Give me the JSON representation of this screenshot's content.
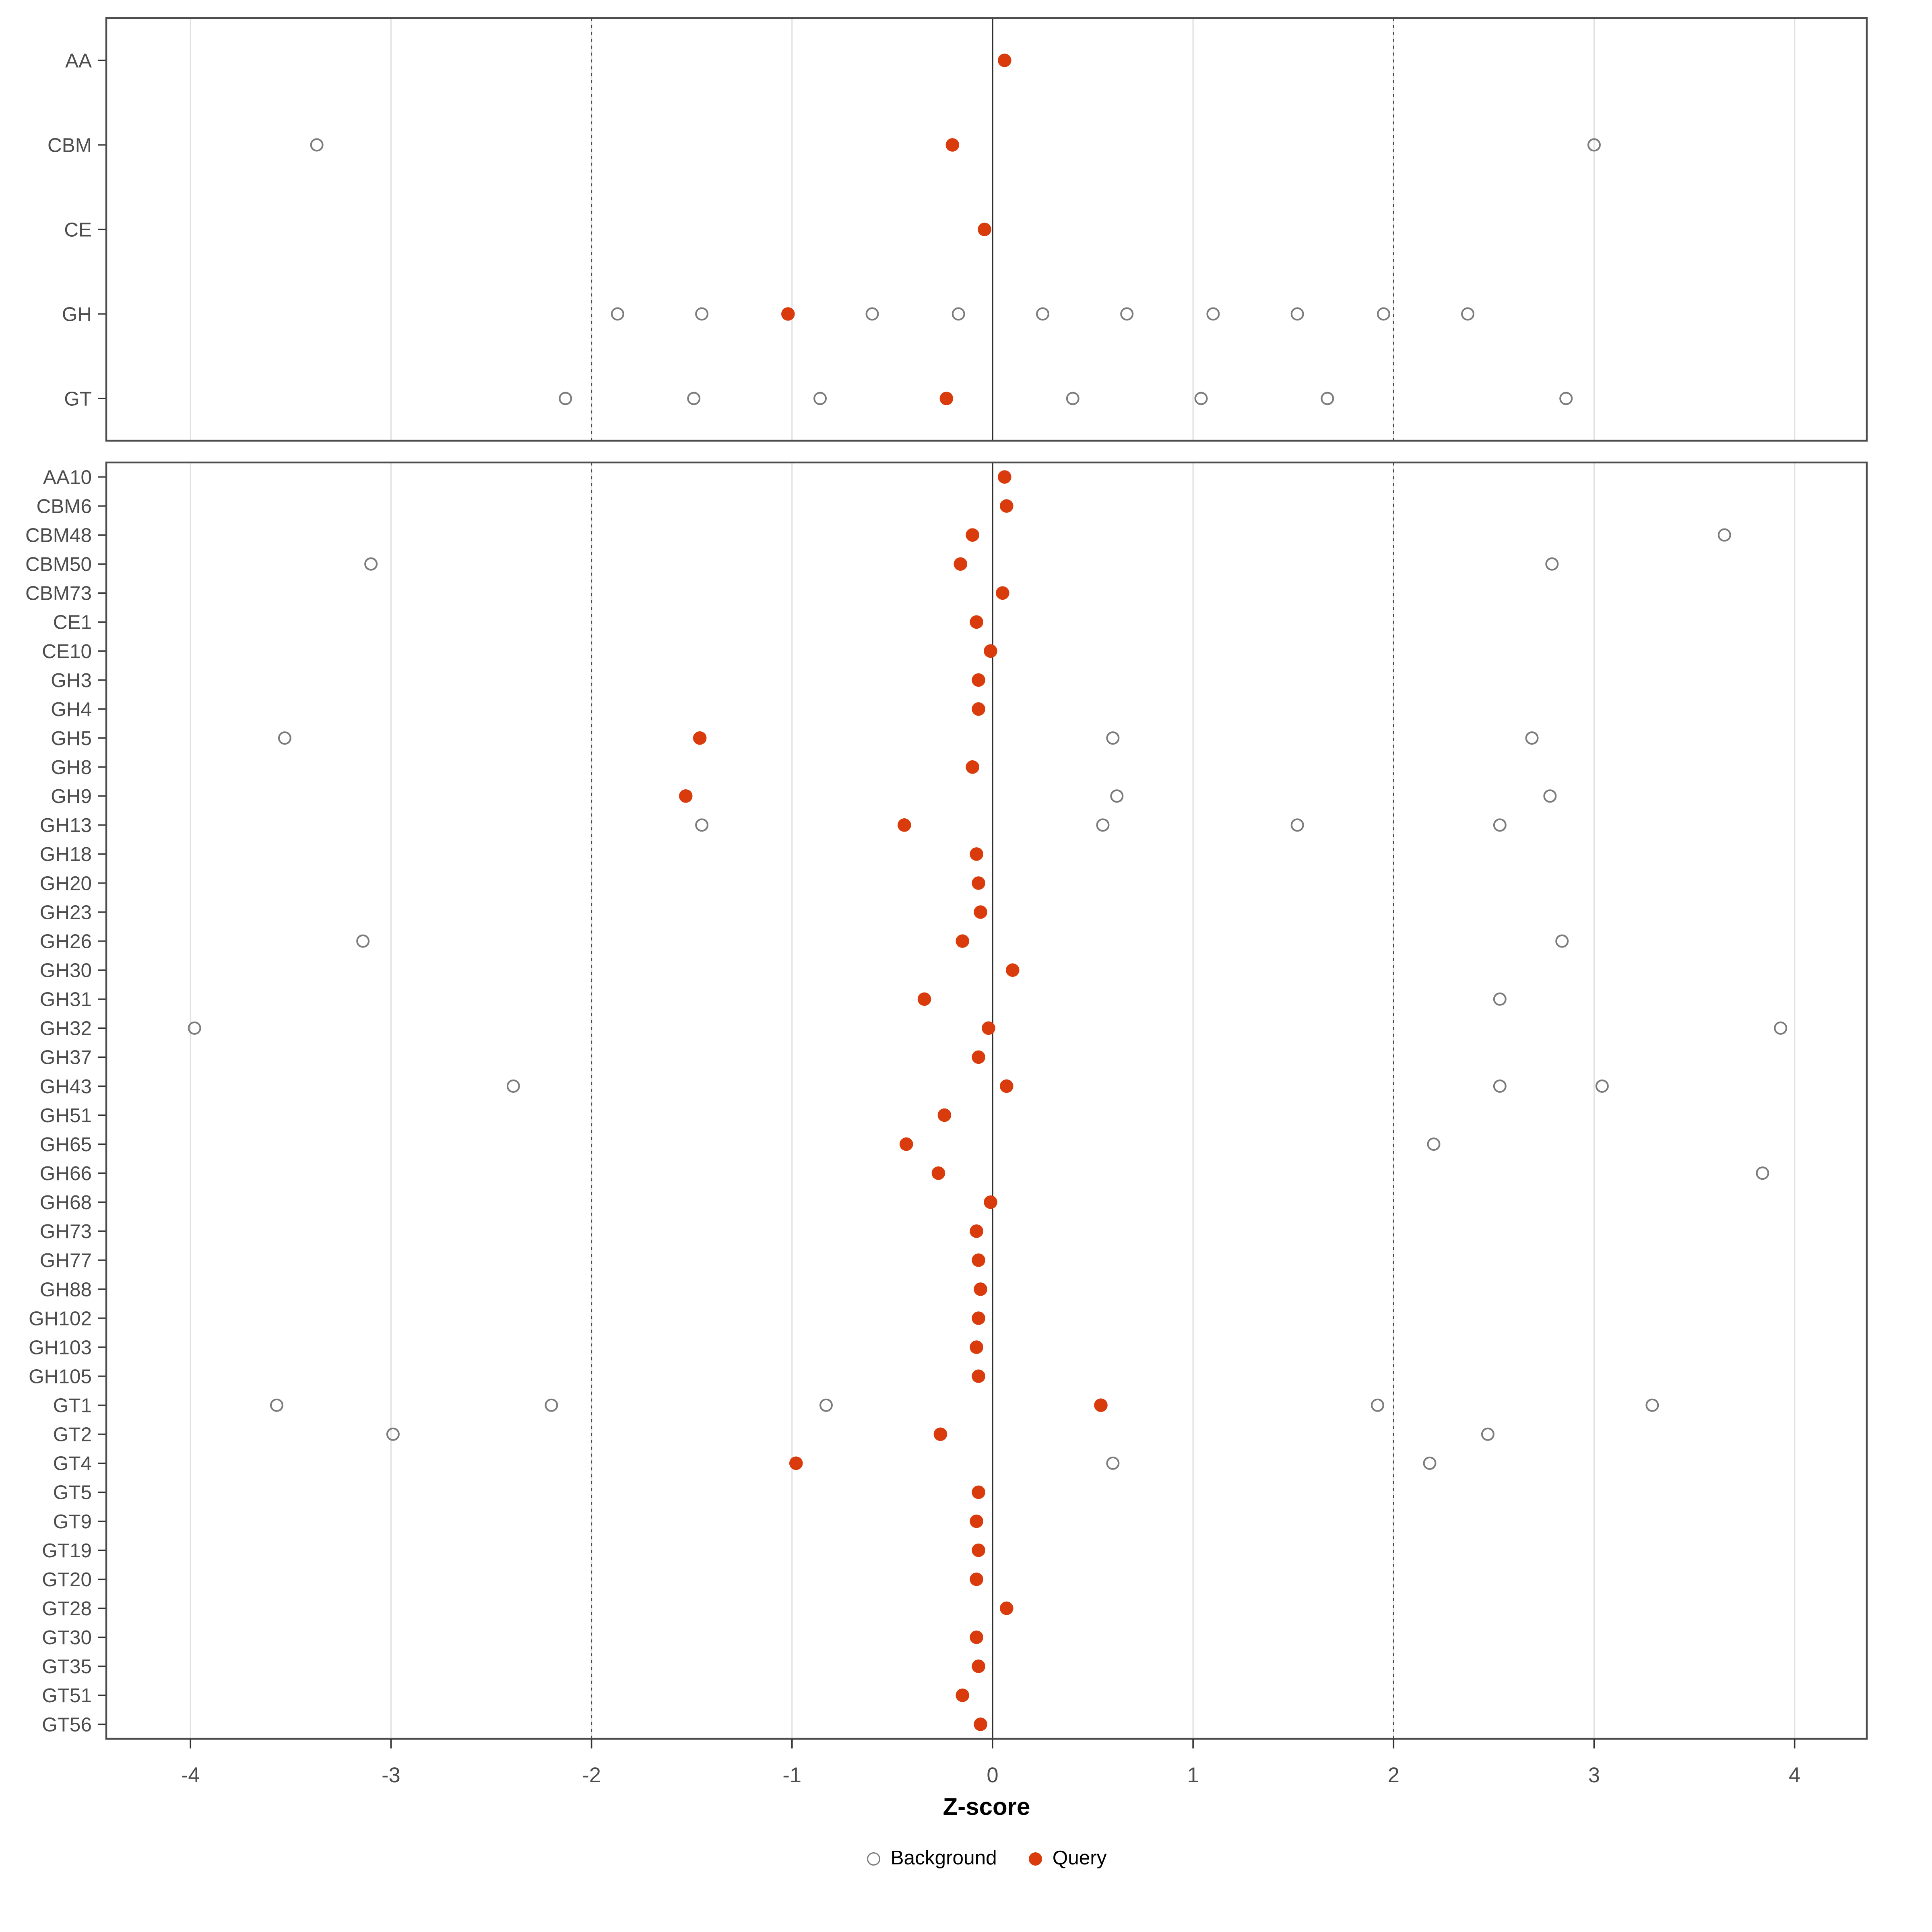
{
  "colors": {
    "query_point": "#d93b0c",
    "background_point": "#7c7c7c",
    "grid": "#e2e2e2",
    "dashed_line": "#4a4a4a",
    "zero_line": "#2e2e2e",
    "panel_border": "#4d4d4d",
    "axis_text": "#4d4d4d",
    "tick_mark": "#333333"
  },
  "chart_data": {
    "type": "scatter",
    "title": "",
    "xlabel": "Z-score",
    "ylabel": "",
    "xlim": [
      -4.42,
      4.36
    ],
    "x_ticks": [
      -4,
      -3,
      -2,
      -1,
      0,
      1,
      2,
      3,
      4
    ],
    "grid": "vertical-major",
    "legend_position": "bottom-center",
    "reference_lines": {
      "solid_zero": 0,
      "dashed": [
        -2,
        2
      ]
    },
    "legend": [
      {
        "label": "Background",
        "marker": "open-circle",
        "color": "#7c7c7c"
      },
      {
        "label": "Query",
        "marker": "filled-circle",
        "color": "#d93b0c"
      }
    ],
    "panels": [
      {
        "id": "class-panel",
        "rows": [
          {
            "label": "AA",
            "query": 0.06,
            "background": []
          },
          {
            "label": "CBM",
            "query": -0.2,
            "background": [
              -3.37,
              3.0
            ]
          },
          {
            "label": "CE",
            "query": -0.04,
            "background": []
          },
          {
            "label": "GH",
            "query": -1.02,
            "background": [
              -1.87,
              -1.45,
              -0.6,
              -0.17,
              0.25,
              0.67,
              1.1,
              1.52,
              1.95,
              2.37
            ]
          },
          {
            "label": "GT",
            "query": -0.23,
            "background": [
              -2.13,
              -1.49,
              -0.86,
              0.4,
              1.04,
              1.67,
              2.86
            ]
          }
        ]
      },
      {
        "id": "family-panel",
        "rows": [
          {
            "label": "AA10",
            "query": 0.06,
            "background": []
          },
          {
            "label": "CBM6",
            "query": 0.07,
            "background": []
          },
          {
            "label": "CBM48",
            "query": -0.1,
            "background": [
              3.65
            ]
          },
          {
            "label": "CBM50",
            "query": -0.16,
            "background": [
              -3.1,
              2.79
            ]
          },
          {
            "label": "CBM73",
            "query": 0.05,
            "background": []
          },
          {
            "label": "CE1",
            "query": -0.08,
            "background": []
          },
          {
            "label": "CE10",
            "query": -0.01,
            "background": []
          },
          {
            "label": "GH3",
            "query": -0.07,
            "background": []
          },
          {
            "label": "GH4",
            "query": -0.07,
            "background": []
          },
          {
            "label": "GH5",
            "query": -1.46,
            "background": [
              -3.53,
              0.6,
              2.69
            ]
          },
          {
            "label": "GH8",
            "query": -0.1,
            "background": []
          },
          {
            "label": "GH9",
            "query": -1.53,
            "background": [
              0.62,
              2.78
            ]
          },
          {
            "label": "GH13",
            "query": -0.44,
            "background": [
              -1.45,
              0.55,
              1.52,
              2.53
            ]
          },
          {
            "label": "GH18",
            "query": -0.08,
            "background": []
          },
          {
            "label": "GH20",
            "query": -0.07,
            "background": []
          },
          {
            "label": "GH23",
            "query": -0.06,
            "background": []
          },
          {
            "label": "GH26",
            "query": -0.15,
            "background": [
              -3.14,
              2.84
            ]
          },
          {
            "label": "GH30",
            "query": 0.1,
            "background": []
          },
          {
            "label": "GH31",
            "query": -0.34,
            "background": [
              2.53
            ]
          },
          {
            "label": "GH32",
            "query": -0.02,
            "background": [
              -3.98,
              3.93
            ]
          },
          {
            "label": "GH37",
            "query": -0.07,
            "background": []
          },
          {
            "label": "GH43",
            "query": 0.07,
            "background": [
              -2.39,
              2.53,
              3.04
            ]
          },
          {
            "label": "GH51",
            "query": -0.24,
            "background": []
          },
          {
            "label": "GH65",
            "query": -0.43,
            "background": [
              2.2
            ]
          },
          {
            "label": "GH66",
            "query": -0.27,
            "background": [
              3.84
            ]
          },
          {
            "label": "GH68",
            "query": -0.01,
            "background": []
          },
          {
            "label": "GH73",
            "query": -0.08,
            "background": []
          },
          {
            "label": "GH77",
            "query": -0.07,
            "background": []
          },
          {
            "label": "GH88",
            "query": -0.06,
            "background": []
          },
          {
            "label": "GH102",
            "query": -0.07,
            "background": []
          },
          {
            "label": "GH103",
            "query": -0.08,
            "background": []
          },
          {
            "label": "GH105",
            "query": -0.07,
            "background": []
          },
          {
            "label": "GT1",
            "query": 0.54,
            "background": [
              -3.57,
              -2.2,
              -0.83,
              1.92,
              3.29
            ]
          },
          {
            "label": "GT2",
            "query": -0.26,
            "background": [
              -2.99,
              2.47
            ]
          },
          {
            "label": "GT4",
            "query": -0.98,
            "background": [
              0.6,
              2.18
            ]
          },
          {
            "label": "GT5",
            "query": -0.07,
            "background": []
          },
          {
            "label": "GT9",
            "query": -0.08,
            "background": []
          },
          {
            "label": "GT19",
            "query": -0.07,
            "background": []
          },
          {
            "label": "GT20",
            "query": -0.08,
            "background": []
          },
          {
            "label": "GT28",
            "query": 0.07,
            "background": []
          },
          {
            "label": "GT30",
            "query": -0.08,
            "background": []
          },
          {
            "label": "GT35",
            "query": -0.07,
            "background": []
          },
          {
            "label": "GT51",
            "query": -0.15,
            "background": []
          },
          {
            "label": "GT56",
            "query": -0.06,
            "background": []
          }
        ]
      }
    ]
  }
}
